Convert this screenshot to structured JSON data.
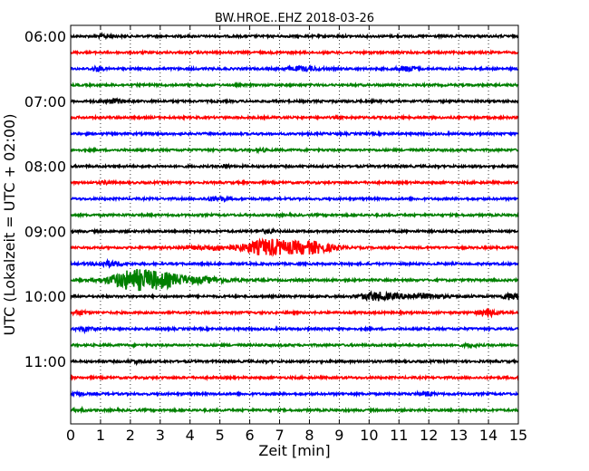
{
  "chart_data": {
    "type": "line",
    "title": "BW.HROE..EHZ 2018-03-26",
    "xlabel": "Zeit  [min]",
    "ylabel": "UTC (Lokalzeit = UTC + 02:00)",
    "xlim": [
      0,
      15
    ],
    "x_ticks": [
      "0",
      "1",
      "2",
      "3",
      "4",
      "5",
      "6",
      "7",
      "8",
      "9",
      "10",
      "11",
      "12",
      "13",
      "14",
      "15"
    ],
    "y_tick_labels": [
      "06:00",
      "07:00",
      "08:00",
      "09:00",
      "10:00",
      "11:00"
    ],
    "y_tick_trace_index": [
      0,
      4,
      8,
      12,
      16,
      20
    ],
    "grid": "vertical dotted lines at each minute",
    "trace_interval_minutes": 15,
    "color_cycle": [
      "#000000",
      "#ff0000",
      "#0000ff",
      "#008000"
    ],
    "traces": [
      {
        "start": "06:00",
        "events": [
          {
            "t": 1.2,
            "amp": 0.25,
            "dur": 0.4
          }
        ]
      },
      {
        "start": "06:15",
        "events": []
      },
      {
        "start": "06:30",
        "events": [
          {
            "t": 0.9,
            "amp": 0.35,
            "dur": 0.3
          },
          {
            "t": 7.8,
            "amp": 0.3,
            "dur": 0.8
          },
          {
            "t": 11.3,
            "amp": 0.4,
            "dur": 0.5
          }
        ]
      },
      {
        "start": "06:45",
        "events": []
      },
      {
        "start": "07:00",
        "events": [
          {
            "t": 1.5,
            "amp": 0.3,
            "dur": 0.6
          }
        ]
      },
      {
        "start": "07:15",
        "events": []
      },
      {
        "start": "07:30",
        "events": []
      },
      {
        "start": "07:45",
        "events": [
          {
            "t": 6.4,
            "amp": 0.2,
            "dur": 0.3
          }
        ]
      },
      {
        "start": "08:00",
        "events": [
          {
            "t": 5.2,
            "amp": 0.3,
            "dur": 0.2
          }
        ]
      },
      {
        "start": "08:15",
        "events": [
          {
            "t": 1.2,
            "amp": 0.2,
            "dur": 0.3
          }
        ]
      },
      {
        "start": "08:30",
        "events": [
          {
            "t": 4.9,
            "amp": 0.35,
            "dur": 0.5
          }
        ]
      },
      {
        "start": "08:45",
        "events": []
      },
      {
        "start": "09:00",
        "events": [
          {
            "t": 6.6,
            "amp": 0.25,
            "dur": 0.4
          }
        ]
      },
      {
        "start": "09:15",
        "events": [
          {
            "t": 6.6,
            "amp": 1.3,
            "dur": 1.2
          },
          {
            "t": 8.0,
            "amp": 1.0,
            "dur": 1.2
          },
          {
            "t": 4.8,
            "amp": 0.3,
            "dur": 1.5
          }
        ]
      },
      {
        "start": "09:30",
        "events": [
          {
            "t": 1.3,
            "amp": 0.4,
            "dur": 0.8
          }
        ]
      },
      {
        "start": "09:45",
        "events": [
          {
            "t": 2.0,
            "amp": 1.4,
            "dur": 1.2
          },
          {
            "t": 3.0,
            "amp": 1.1,
            "dur": 1.3
          },
          {
            "t": 4.5,
            "amp": 0.4,
            "dur": 1.5
          }
        ]
      },
      {
        "start": "10:00",
        "events": [
          {
            "t": 10.2,
            "amp": 0.6,
            "dur": 0.8
          },
          {
            "t": 11.5,
            "amp": 0.35,
            "dur": 1.5
          },
          {
            "t": 14.8,
            "amp": 0.55,
            "dur": 0.5
          }
        ]
      },
      {
        "start": "10:15",
        "events": [
          {
            "t": 0.3,
            "amp": 0.3,
            "dur": 0.4
          },
          {
            "t": 14.0,
            "amp": 0.45,
            "dur": 0.6
          }
        ]
      },
      {
        "start": "10:30",
        "events": [
          {
            "t": 0.5,
            "amp": 0.35,
            "dur": 0.4
          }
        ]
      },
      {
        "start": "10:45",
        "events": [
          {
            "t": 13.4,
            "amp": 0.3,
            "dur": 0.3
          }
        ]
      },
      {
        "start": "11:00",
        "events": [
          {
            "t": 2.2,
            "amp": 0.2,
            "dur": 0.4
          }
        ]
      },
      {
        "start": "11:15",
        "events": []
      },
      {
        "start": "11:30",
        "events": [
          {
            "t": 0.2,
            "amp": 0.3,
            "dur": 0.3
          },
          {
            "t": 11.9,
            "amp": 0.35,
            "dur": 0.4
          }
        ]
      },
      {
        "start": "11:45",
        "events": [
          {
            "t": 0.3,
            "amp": 0.2,
            "dur": 0.3
          }
        ]
      }
    ]
  }
}
